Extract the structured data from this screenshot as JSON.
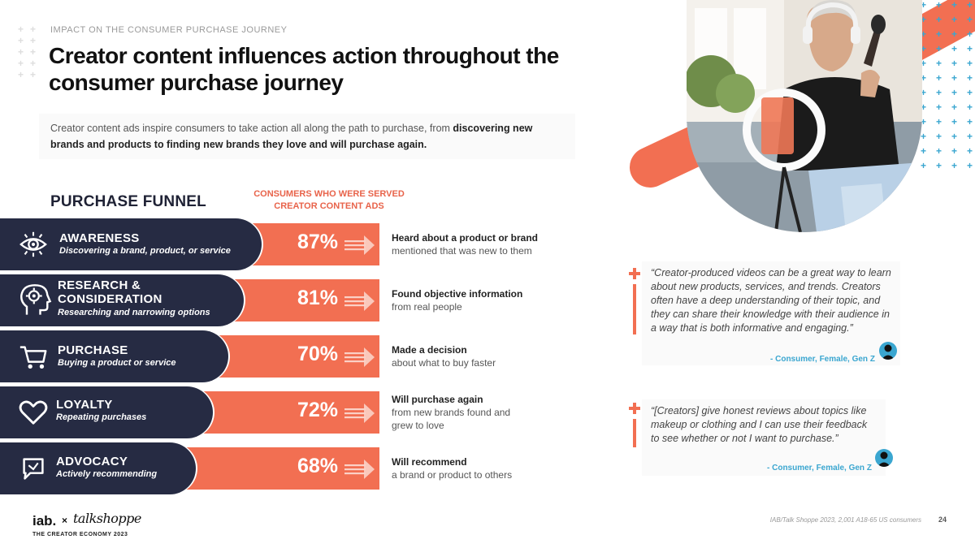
{
  "header": {
    "eyebrow": "IMPACT ON THE CONSUMER PURCHASE JOURNEY",
    "title": "Creator content influences action throughout the consumer purchase journey"
  },
  "intro": {
    "text_plain": "Creator content ads inspire consumers to take action all along the path to purchase, from ",
    "text_bold": "discovering new brands and products to finding new brands they love and will purchase again."
  },
  "funnel": {
    "title": "PURCHASE FUNNEL",
    "column_header": "CONSUMERS WHO WERE SERVED CREATOR CONTENT ADS",
    "stages": [
      {
        "label": "AWARENESS",
        "sub": "Discovering a brand, product, or service",
        "percent": "87%",
        "desc_bold": "Heard about a product or brand",
        "desc": "mentioned that was new to them",
        "icon": "eye-icon"
      },
      {
        "label": "RESEARCH & CONSIDERATION",
        "sub": "Researching and narrowing options",
        "percent": "81%",
        "desc_bold": "Found objective information",
        "desc": "from real people",
        "icon": "head-gear-icon"
      },
      {
        "label": "PURCHASE",
        "sub": "Buying a product or service",
        "percent": "70%",
        "desc_bold": "Made a decision",
        "desc": "about what to buy faster",
        "icon": "cart-icon"
      },
      {
        "label": "LOYALTY",
        "sub": "Repeating purchases",
        "percent": "72%",
        "desc_bold": "Will purchase again",
        "desc": "from new brands found and grew to love",
        "icon": "heart-icon"
      },
      {
        "label": "ADVOCACY",
        "sub": "Actively recommending",
        "percent": "68%",
        "desc_bold": "Will recommend",
        "desc": "a brand or product to others",
        "icon": "speech-bubble-icon"
      }
    ]
  },
  "quotes": [
    {
      "text": "“Creator-produced videos can be a great way to learn about new products, services, and trends. Creators often have a deep understanding of their topic, and they can share their knowledge with their audience in a way that is both informative and engaging.”",
      "attribution": "- Consumer, Female, Gen Z"
    },
    {
      "text": "“[Creators] give honest reviews about topics like makeup or clothing and I can use their feedback to see whether or not I want to purchase.”",
      "attribution": "- Consumer, Female, Gen Z"
    }
  ],
  "footer": {
    "logo": "iab.",
    "cross": "×",
    "partner": "talkshoppe",
    "tagline": "THE CREATOR ECONOMY 2023",
    "source": "IAB/Talk Shoppe 2023, 2,001 A18-65 US consumers",
    "page": "24"
  },
  "colors": {
    "navy": "#262b43",
    "coral": "#f26f52",
    "blue": "#3aa6d0"
  }
}
